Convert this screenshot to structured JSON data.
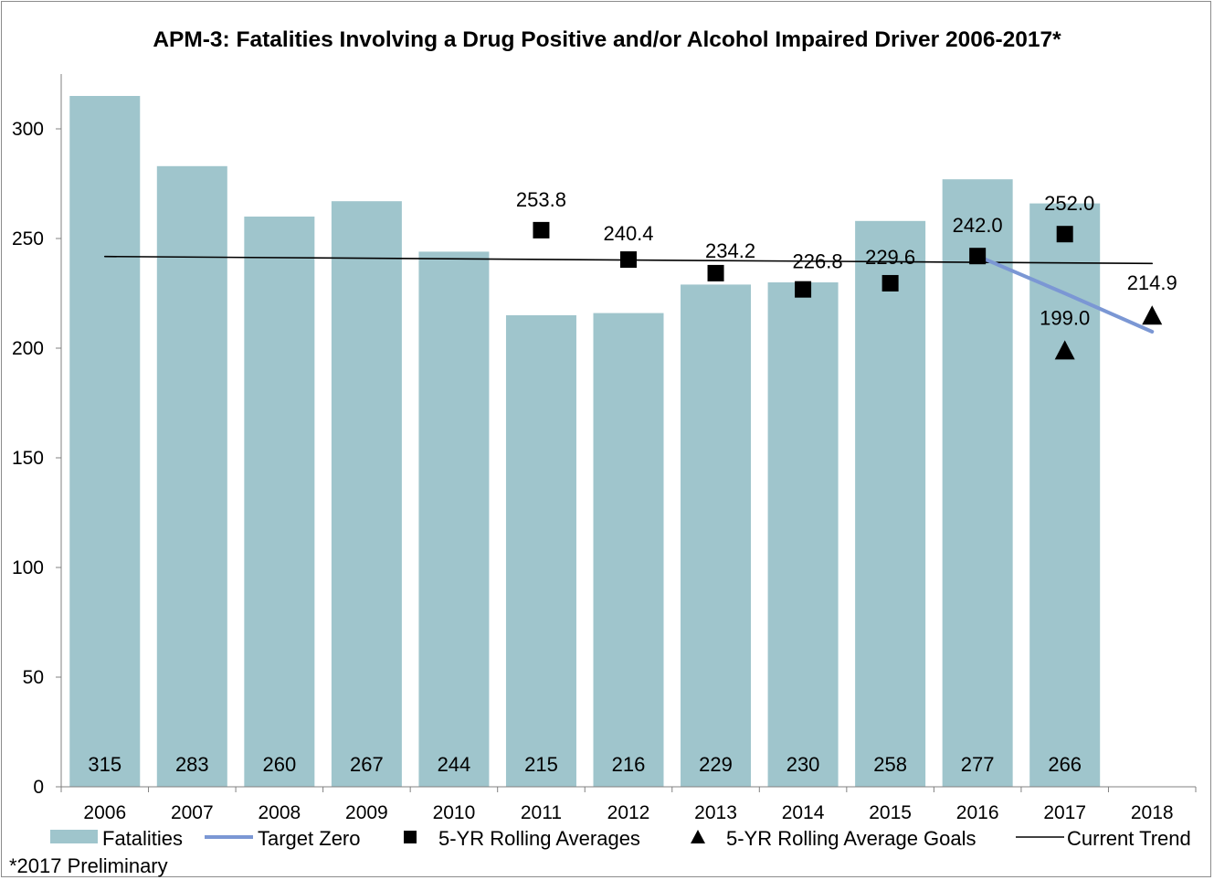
{
  "chart_data": {
    "type": "bar",
    "title": "APM-3: Fatalities Involving a Drug Positive and/or Alcohol Impaired Driver 2006-2017*",
    "footnote": "*2017 Preliminary",
    "categories": [
      "2006",
      "2007",
      "2008",
      "2009",
      "2010",
      "2011",
      "2012",
      "2013",
      "2014",
      "2015",
      "2016",
      "2017",
      "2018"
    ],
    "ylim": [
      0,
      300
    ],
    "yticks": [
      0,
      50,
      100,
      150,
      200,
      250,
      300
    ],
    "grid": false,
    "legend_position": "bottom",
    "series": [
      {
        "name": "Fatalities",
        "kind": "bar",
        "color": "#9fc5cc",
        "values": [
          315,
          283,
          260,
          267,
          244,
          215,
          216,
          229,
          230,
          258,
          277,
          266,
          null
        ],
        "labels": [
          "315",
          "283",
          "260",
          "267",
          "244",
          "215",
          "216",
          "229",
          "230",
          "258",
          "277",
          "266",
          ""
        ]
      },
      {
        "name": "Target Zero",
        "kind": "line",
        "color": "#7b97d4",
        "values": [
          null,
          null,
          null,
          null,
          null,
          null,
          null,
          null,
          null,
          null,
          242.0,
          225.0,
          207.5
        ]
      },
      {
        "name": "5-YR Rolling Averages",
        "kind": "square-marker",
        "color": "#000000",
        "values": [
          null,
          null,
          null,
          null,
          null,
          253.8,
          240.4,
          234.2,
          226.8,
          229.6,
          242.0,
          252.0,
          null
        ],
        "labels": [
          "",
          "",
          "",
          "",
          "",
          "253.8",
          "240.4",
          "234.2",
          "226.8",
          "229.6",
          "242.0",
          "252.0",
          ""
        ]
      },
      {
        "name": "5-YR Rolling Average Goals",
        "kind": "triangle-marker",
        "color": "#000000",
        "values": [
          null,
          null,
          null,
          null,
          null,
          null,
          null,
          null,
          null,
          null,
          null,
          199.0,
          214.9
        ],
        "labels": [
          "",
          "",
          "",
          "",
          "",
          "",
          "",
          "",
          "",
          "",
          "",
          "199.0",
          "214.9"
        ]
      },
      {
        "name": "Current Trend",
        "kind": "line",
        "color": "#000000",
        "values": [
          241.8,
          null,
          null,
          null,
          null,
          null,
          null,
          null,
          null,
          null,
          null,
          null,
          238.6
        ]
      }
    ]
  }
}
